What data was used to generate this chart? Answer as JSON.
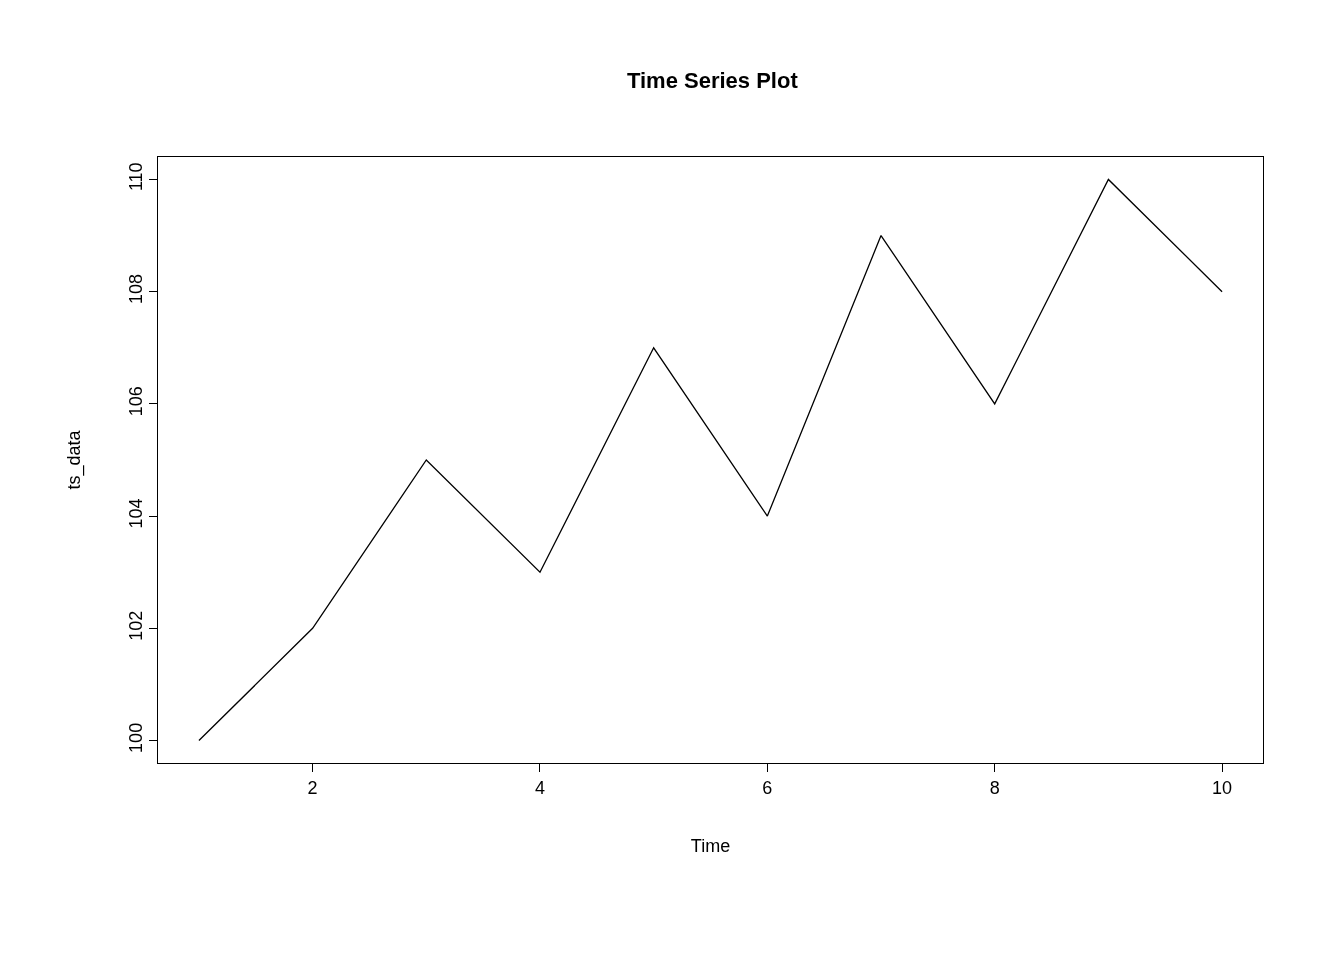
{
  "chart_data": {
    "type": "line",
    "title": "Time Series Plot",
    "xlabel": "Time",
    "ylabel": "ts_data",
    "x": [
      1,
      2,
      3,
      4,
      5,
      6,
      7,
      8,
      9,
      10
    ],
    "series": [
      {
        "color": "#000000",
        "values": [
          100,
          102,
          105,
          103,
          107,
          104,
          109,
          106,
          110,
          108
        ]
      }
    ],
    "xlim": [
      0.64,
      10.36
    ],
    "xticks": [
      2,
      4,
      6,
      8,
      10
    ],
    "ylim": [
      99.6,
      110.4
    ],
    "yticks": [
      100,
      102,
      104,
      106,
      108,
      110
    ],
    "line_style": "solid"
  }
}
